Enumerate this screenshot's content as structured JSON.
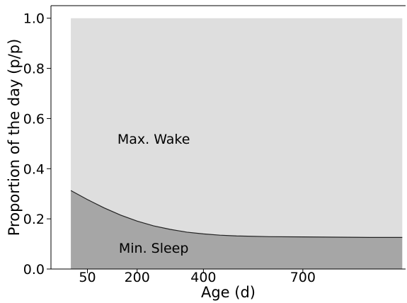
{
  "chart_data": {
    "type": "area",
    "title": "",
    "xlabel": "Age (d)",
    "ylabel": "Proportion of the day (p/p)",
    "xlim": [
      -60,
      1010
    ],
    "ylim": [
      0,
      1.05
    ],
    "x_ticks": [
      50,
      200,
      400,
      700
    ],
    "y_ticks": [
      0.0,
      0.2,
      0.4,
      0.6,
      0.8,
      1.0
    ],
    "y_tick_labels": [
      "0.0",
      "0.2",
      "0.4",
      "0.6",
      "0.8",
      "1.0"
    ],
    "grid": false,
    "x": [
      0,
      50,
      100,
      150,
      200,
      250,
      300,
      350,
      400,
      450,
      500,
      600,
      700,
      800,
      900,
      1000
    ],
    "series": [
      {
        "values": [
          0.313,
          0.277,
          0.244,
          0.215,
          0.191,
          0.172,
          0.158,
          0.147,
          0.14,
          0.135,
          0.132,
          0.129,
          0.128,
          0.127,
          0.126,
          0.126
        ],
        "color": "#a6a6a6"
      },
      {
        "values": [
          1,
          1,
          1,
          1,
          1,
          1,
          1,
          1,
          1,
          1,
          1,
          1,
          1,
          1,
          1,
          1
        ],
        "color": "#dedede"
      }
    ],
    "annotations": [
      {
        "text": "Max. Wake",
        "x": 250,
        "y": 0.52
      },
      {
        "text": "Min. Sleep",
        "x": 250,
        "y": 0.085
      }
    ]
  }
}
